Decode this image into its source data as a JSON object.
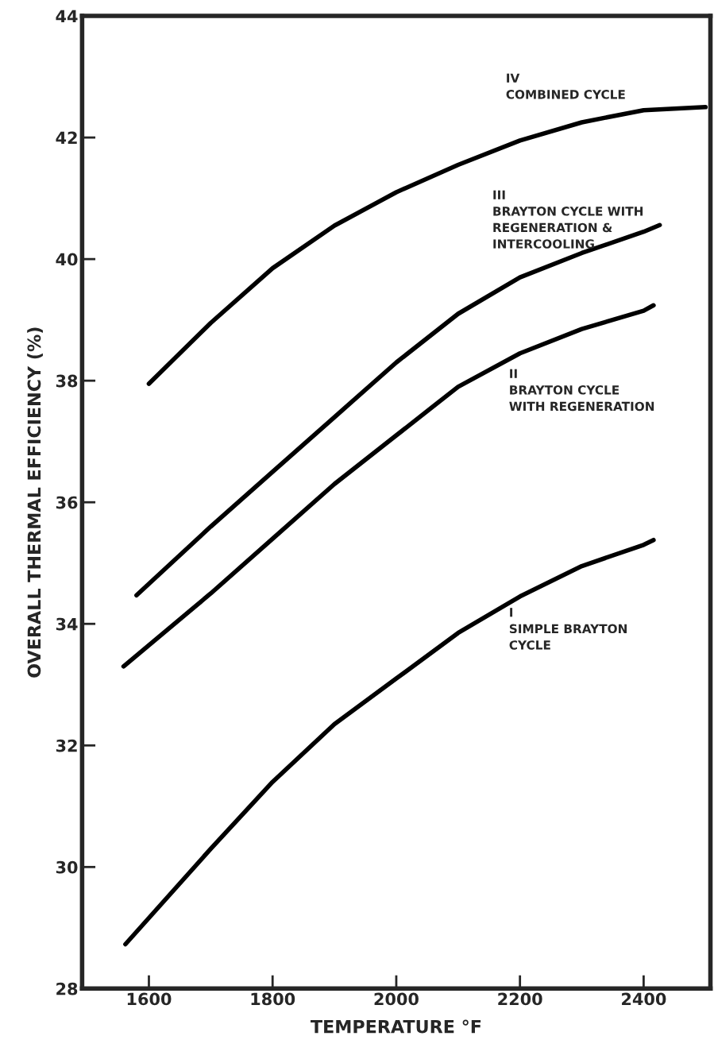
{
  "chart_data": {
    "type": "line",
    "xlabel": "TEMPERATURE °F",
    "ylabel": "OVERALL THERMAL EFFICIENCY (%)",
    "xlim": [
      1492,
      2508
    ],
    "xticks": [
      1600,
      1800,
      2000,
      2200,
      2400
    ],
    "ylim": [
      28,
      44
    ],
    "yticks": [
      28,
      30,
      32,
      34,
      36,
      38,
      40,
      42,
      44
    ],
    "grid": false,
    "legend": false,
    "marker": "none",
    "line_style": "solid",
    "series": [
      {
        "name": "IV\nCOMBINED CYCLE",
        "color": "#000000",
        "x": [
          1600,
          1700,
          1800,
          1900,
          2000,
          2100,
          2200,
          2300,
          2400,
          2500
        ],
        "values": [
          37.95,
          38.95,
          39.85,
          40.55,
          41.1,
          41.55,
          41.95,
          42.25,
          42.45,
          42.5
        ]
      },
      {
        "name": "III\nBRAYTON CYCLE WITH\nREGENERATION &\nINTERCOOLING",
        "color": "#000000",
        "x": [
          1580,
          1700,
          1800,
          1900,
          2000,
          2100,
          2200,
          2300,
          2400,
          2426
        ],
        "values": [
          34.47,
          35.6,
          36.5,
          37.4,
          38.3,
          39.1,
          39.7,
          40.1,
          40.45,
          40.56
        ]
      },
      {
        "name": "II\nBRAYTON CYCLE\nWITH REGENERATION",
        "color": "#000000",
        "x": [
          1559,
          1700,
          1800,
          1900,
          2000,
          2100,
          2200,
          2300,
          2400,
          2416
        ],
        "values": [
          33.3,
          34.5,
          35.4,
          36.3,
          37.1,
          37.9,
          38.45,
          38.85,
          39.15,
          39.24
        ]
      },
      {
        "name": "I\nSIMPLE BRAYTON\nCYCLE",
        "color": "#000000",
        "x": [
          1562,
          1700,
          1800,
          1900,
          2000,
          2100,
          2200,
          2300,
          2400,
          2416
        ],
        "values": [
          28.73,
          30.3,
          31.4,
          32.35,
          33.1,
          33.85,
          34.45,
          34.95,
          35.3,
          35.38
        ]
      }
    ]
  }
}
